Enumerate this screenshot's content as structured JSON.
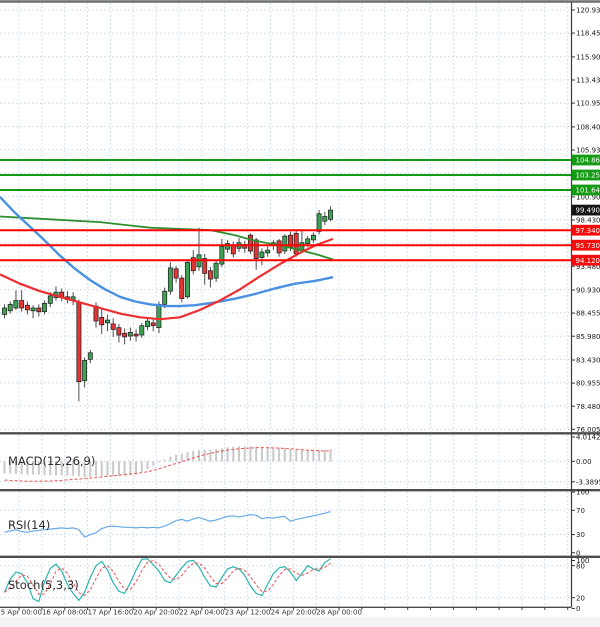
{
  "colors": {
    "background": "#ffffff",
    "grid": "#c8d7ea",
    "up_candle": "#3da254",
    "down_candle": "#e23535",
    "candle_outline": "#1d1d1d",
    "wick": "#4d4d4d",
    "ma_blue": "#4a90e2",
    "ma_red": "#ee2e2e",
    "ma_green": "#2e8f2e",
    "resistance_line": "#149a14",
    "support_line": "#ff0000",
    "current_badge": "#141414",
    "resistance_badge": "#149a14",
    "support_badge": "#f20d0d",
    "macd_bar": "#c9c9c9",
    "signal_line": "#ef5350",
    "rsi_line": "#6aaae4",
    "stoch_k": "#2ab5b0",
    "stoch_d": "#ef5350",
    "separator": "#4d4d4d",
    "top_border": "#6e6e6e",
    "footer_bg": "#f3f3f3"
  },
  "chart_data": {
    "type": "candlestick",
    "timeframe_labels": [
      "15 Apr 00:00",
      "16 Apr 08:00",
      "17 Apr 16:00",
      "20 Apr 20:00",
      "22 Apr 04:00",
      "23 Apr 12:00",
      "24 Apr 20:00",
      "28 Apr 00:00"
    ],
    "price_axis_ticks": [
      "120.930",
      "118.455",
      "115.905",
      "113.430",
      "110.955",
      "108.405",
      "105.930",
      "100.905",
      "98.430",
      "93.480",
      "90.930",
      "88.455",
      "85.980",
      "83.430",
      "80.955",
      "78.480",
      "76.005"
    ],
    "ylim": [
      76.005,
      120.93
    ],
    "levels": {
      "resistance": [
        "104.860",
        "103.250",
        "101.640"
      ],
      "support": [
        "97.340",
        "95.730",
        "94.120"
      ],
      "current_price_badge": "99.490"
    },
    "candles": [
      [
        88.3,
        89.4,
        87.9,
        89.0
      ],
      [
        88.7,
        89.7,
        88.4,
        89.4
      ],
      [
        89.0,
        90.9,
        88.8,
        89.8
      ],
      [
        89.8,
        90.9,
        88.6,
        89.0
      ],
      [
        89.3,
        89.7,
        88.3,
        88.8
      ],
      [
        88.7,
        89.3,
        87.9,
        89.0
      ],
      [
        89.0,
        89.4,
        88.1,
        88.6
      ],
      [
        88.6,
        89.8,
        88.3,
        89.5
      ],
      [
        89.5,
        90.7,
        89.1,
        90.3
      ],
      [
        90.1,
        91.3,
        89.8,
        90.7
      ],
      [
        90.7,
        91.1,
        89.7,
        90.1
      ],
      [
        90.2,
        90.8,
        89.5,
        89.9
      ],
      [
        89.9,
        90.7,
        89.3,
        90.2
      ],
      [
        89.6,
        89.9,
        79.0,
        81.1
      ],
      [
        81.2,
        83.7,
        80.5,
        83.4
      ],
      [
        83.5,
        84.5,
        83.1,
        84.2
      ],
      [
        89.2,
        89.6,
        86.9,
        87.6
      ],
      [
        88.0,
        89.0,
        86.2,
        87.2
      ],
      [
        87.4,
        88.3,
        86.5,
        87.7
      ],
      [
        87.3,
        87.9,
        85.9,
        86.7
      ],
      [
        86.9,
        87.3,
        85.3,
        86.1
      ],
      [
        86.3,
        86.8,
        85.1,
        85.9
      ],
      [
        86.0,
        86.9,
        85.5,
        86.4
      ],
      [
        86.2,
        86.7,
        85.4,
        86.0
      ],
      [
        86.1,
        87.4,
        85.8,
        87.1
      ],
      [
        87.0,
        88.0,
        86.6,
        87.6
      ],
      [
        87.4,
        87.9,
        86.5,
        87.1
      ],
      [
        86.9,
        89.7,
        86.3,
        89.4
      ],
      [
        89.4,
        91.2,
        89.0,
        90.8
      ],
      [
        90.8,
        93.9,
        90.4,
        93.3
      ],
      [
        93.2,
        93.5,
        91.7,
        92.2
      ],
      [
        92.2,
        92.5,
        89.6,
        90.0
      ],
      [
        90.2,
        94.2,
        90.0,
        93.9
      ],
      [
        94.4,
        95.2,
        92.6,
        93.0
      ],
      [
        93.4,
        97.6,
        93.0,
        94.7
      ],
      [
        94.3,
        94.8,
        91.5,
        92.7
      ],
      [
        93.0,
        93.4,
        91.2,
        92.1
      ],
      [
        92.2,
        94.1,
        91.8,
        93.8
      ],
      [
        93.7,
        96.4,
        93.4,
        95.6
      ],
      [
        95.3,
        96.3,
        94.9,
        95.9
      ],
      [
        95.7,
        96.1,
        94.4,
        94.8
      ],
      [
        95.4,
        96.5,
        95.0,
        96.0
      ],
      [
        95.8,
        96.2,
        94.9,
        95.4
      ],
      [
        96.8,
        97.0,
        94.8,
        95.1
      ],
      [
        96.3,
        96.5,
        93.1,
        94.3
      ],
      [
        94.4,
        95.4,
        93.6,
        95.0
      ],
      [
        94.9,
        95.6,
        94.5,
        95.2
      ],
      [
        95.7,
        96.3,
        95.2,
        96.0
      ],
      [
        96.2,
        96.4,
        94.5,
        94.9
      ],
      [
        95.1,
        96.9,
        94.8,
        96.7
      ],
      [
        96.8,
        97.2,
        95.1,
        95.5
      ],
      [
        97.0,
        97.3,
        94.5,
        94.8
      ],
      [
        95.2,
        97.4,
        94.9,
        96.0
      ],
      [
        95.9,
        96.7,
        95.5,
        96.4
      ],
      [
        96.3,
        97.1,
        96.0,
        96.8
      ],
      [
        97.2,
        99.5,
        96.9,
        99.1
      ],
      [
        98.3,
        99.3,
        97.9,
        98.8
      ],
      [
        98.5,
        99.9,
        98.3,
        99.49
      ]
    ],
    "overlays": {
      "ma_green": [
        [
          0,
          98.8
        ],
        [
          50,
          98.5
        ],
        [
          100,
          98.2
        ],
        [
          150,
          97.6
        ],
        [
          185,
          97.45
        ],
        [
          211,
          97.34
        ],
        [
          235,
          96.8
        ],
        [
          255,
          96.2
        ],
        [
          280,
          95.7
        ],
        [
          300,
          95.2
        ],
        [
          318,
          94.7
        ],
        [
          333,
          94.2
        ]
      ],
      "ma_red": [
        [
          0,
          92.6
        ],
        [
          20,
          91.6
        ],
        [
          40,
          90.8
        ],
        [
          60,
          90.2
        ],
        [
          80,
          89.6
        ],
        [
          100,
          89.0
        ],
        [
          120,
          88.4
        ],
        [
          140,
          88.0
        ],
        [
          160,
          87.8
        ],
        [
          180,
          88.0
        ],
        [
          200,
          88.8
        ],
        [
          220,
          89.8
        ],
        [
          240,
          91.0
        ],
        [
          260,
          92.4
        ],
        [
          280,
          93.7
        ],
        [
          300,
          94.9
        ],
        [
          315,
          95.7
        ],
        [
          333,
          96.4
        ]
      ],
      "ma_blue": [
        [
          0,
          100.9
        ],
        [
          15,
          99.2
        ],
        [
          30,
          97.7
        ],
        [
          45,
          96.2
        ],
        [
          60,
          94.6
        ],
        [
          75,
          93.2
        ],
        [
          90,
          92.0
        ],
        [
          105,
          91.0
        ],
        [
          120,
          90.2
        ],
        [
          135,
          89.7
        ],
        [
          150,
          89.4
        ],
        [
          165,
          89.2
        ],
        [
          180,
          89.2
        ],
        [
          195,
          89.3
        ],
        [
          215,
          89.6
        ],
        [
          235,
          90.0
        ],
        [
          255,
          90.5
        ],
        [
          275,
          91.1
        ],
        [
          295,
          91.6
        ],
        [
          315,
          91.9
        ],
        [
          333,
          92.3
        ]
      ]
    },
    "indicators": {
      "macd": {
        "label": "MACD(12,26,9)",
        "axis_ticks": [
          "4.0142",
          "0.00",
          "-3.3895"
        ],
        "histogram": [
          -2.0,
          -2.05,
          -2.1,
          -2.15,
          -2.2,
          -2.2,
          -2.25,
          -2.3,
          -2.3,
          -2.35,
          -2.35,
          -2.4,
          -2.4,
          -2.5,
          -2.6,
          -2.55,
          -2.5,
          -2.5,
          -2.45,
          -2.45,
          -2.4,
          -2.35,
          -2.3,
          -2.2,
          -1.8,
          -1.3,
          -0.7,
          -0.2,
          0.3,
          0.8,
          1.1,
          1.25,
          1.5,
          1.7,
          1.85,
          1.9,
          1.9,
          2.0,
          2.15,
          2.3,
          2.4,
          2.45,
          2.5,
          2.5,
          2.45,
          2.4,
          2.35,
          2.3,
          2.25,
          2.2,
          2.1,
          2.0,
          1.9,
          1.85,
          1.8,
          1.85,
          1.9,
          2.0
        ],
        "signal": [
          -3.1,
          -3.15,
          -3.2,
          -3.25,
          -3.3,
          -3.3,
          -3.3,
          -3.28,
          -3.25,
          -3.2,
          -3.15,
          -3.08,
          -3.0,
          -2.92,
          -2.85,
          -2.78,
          -2.7,
          -2.6,
          -2.5,
          -2.4,
          -2.3,
          -2.2,
          -2.1,
          -2.0,
          -1.88,
          -1.72,
          -1.5,
          -1.25,
          -0.95,
          -0.65,
          -0.35,
          -0.05,
          0.25,
          0.55,
          0.85,
          1.1,
          1.32,
          1.52,
          1.7,
          1.85,
          1.97,
          2.07,
          2.14,
          2.2,
          2.24,
          2.26,
          2.25,
          2.22,
          2.18,
          2.12,
          2.06,
          1.99,
          1.92,
          1.85,
          1.79,
          1.74,
          1.72,
          1.74
        ]
      },
      "rsi": {
        "label": "RSI(14)",
        "axis_ticks": [
          "100",
          "70",
          "30",
          "0"
        ],
        "values": [
          34,
          36,
          38,
          35,
          34,
          36,
          37,
          38,
          39,
          40,
          41,
          40,
          41,
          38,
          26,
          30,
          33,
          40,
          43,
          44,
          43,
          42,
          42,
          41,
          42,
          41,
          42,
          41,
          44,
          48,
          53,
          55,
          52,
          56,
          58,
          55,
          52,
          54,
          57,
          60,
          61,
          59,
          61,
          63,
          62,
          56,
          58,
          57,
          59,
          60,
          52,
          55,
          57,
          59,
          61,
          63,
          65,
          68
        ]
      },
      "stoch": {
        "label": "Stoch(5,3,3)",
        "axis_ticks": [
          "100",
          "80",
          "20",
          "0"
        ],
        "k_values": [
          30,
          55,
          68,
          65,
          48,
          18,
          13,
          50,
          75,
          83,
          70,
          45,
          28,
          15,
          30,
          58,
          80,
          88,
          72,
          48,
          32,
          28,
          48,
          72,
          92,
          95,
          82,
          70,
          52,
          48,
          62,
          76,
          88,
          90,
          78,
          58,
          42,
          40,
          58,
          74,
          78,
          74,
          62,
          42,
          28,
          24,
          45,
          65,
          76,
          78,
          68,
          52,
          66,
          80,
          74,
          70,
          86,
          98
        ]
      }
    }
  }
}
